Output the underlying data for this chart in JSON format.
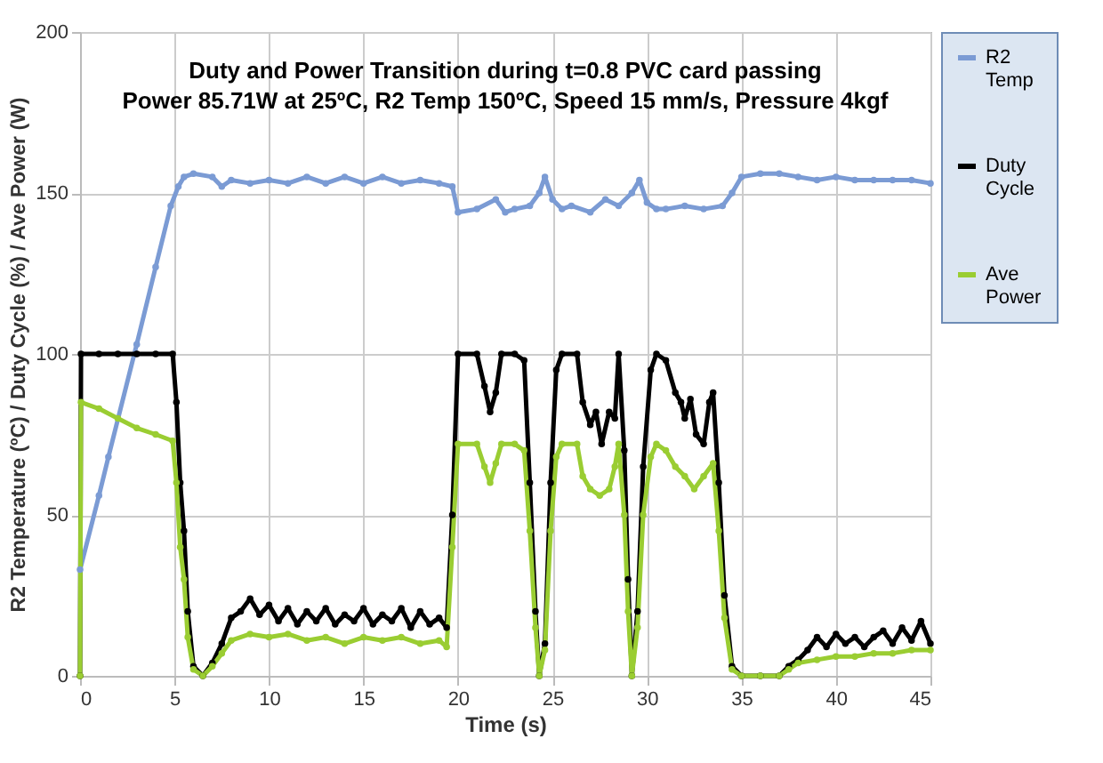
{
  "chart_data": {
    "type": "line",
    "title": "Duty and Power Transition during t=0.8 PVC card passing",
    "subtitle": "Power 85.71W at 25ºC, R2 Temp 150ºC, Speed 15 mm/s, Pressure 4kgf",
    "xlabel": "Time (s)",
    "ylabel": "R2 Temperature (ºC) / Duty Cycle (%) / Ave Power (W)",
    "xlim": [
      0,
      45
    ],
    "xticks": [
      0,
      5,
      10,
      15,
      20,
      25,
      30,
      35,
      40,
      45
    ],
    "ylim": [
      0,
      200
    ],
    "yticks": [
      0,
      50,
      100,
      150,
      200
    ],
    "grid": true,
    "legend": "right",
    "marker": "circle",
    "line_style": "solid",
    "series": [
      {
        "name": "R2 Temp",
        "color": "#7b9bd4",
        "x": [
          0,
          1,
          1.5,
          3,
          4,
          4.8,
          5.2,
          5.5,
          6,
          7,
          7.5,
          8,
          9,
          10,
          11,
          12,
          13,
          14,
          15,
          16,
          17,
          18,
          19,
          19.7,
          20,
          21,
          22,
          22.5,
          23,
          23.8,
          24.3,
          24.6,
          25,
          25.5,
          26,
          27,
          27.8,
          28.5,
          29.2,
          29.6,
          30,
          30.5,
          31,
          32,
          33,
          34,
          34.5,
          35,
          36,
          37,
          38,
          39,
          40,
          41,
          42,
          43,
          44,
          45
        ],
        "values": [
          33,
          56,
          68,
          103,
          127,
          146,
          152,
          155,
          156,
          155,
          152,
          154,
          153,
          154,
          153,
          155,
          153,
          155,
          153,
          155,
          153,
          154,
          153,
          152,
          144,
          145,
          148,
          144,
          145,
          146,
          150,
          155,
          148,
          145,
          146,
          144,
          148,
          146,
          150,
          154,
          147,
          145,
          145,
          146,
          145,
          146,
          150,
          155,
          156,
          156,
          155,
          154,
          155,
          154,
          154,
          154,
          154,
          153
        ]
      },
      {
        "name": "Duty Cycle",
        "color": "#000000",
        "x": [
          0,
          0.05,
          1,
          2,
          3,
          4,
          4.9,
          5.1,
          5.3,
          5.5,
          5.7,
          6,
          6.5,
          7,
          7.5,
          8,
          8.5,
          9,
          9.5,
          10,
          10.5,
          11,
          11.5,
          12,
          12.5,
          13,
          13.5,
          14,
          14.5,
          15,
          15.5,
          16,
          16.5,
          17,
          17.5,
          18,
          18.5,
          19,
          19.4,
          19.7,
          20,
          21,
          21.4,
          21.7,
          22,
          22.3,
          23,
          23.5,
          23.8,
          24.1,
          24.3,
          24.6,
          24.9,
          25.2,
          25.5,
          26.3,
          26.6,
          27,
          27.3,
          27.6,
          28,
          28.3,
          28.5,
          28.8,
          29,
          29.2,
          29.5,
          29.8,
          30.2,
          30.5,
          31,
          31.5,
          31.8,
          32,
          32.3,
          32.6,
          33,
          33.3,
          33.5,
          33.8,
          34.1,
          34.5,
          35,
          36,
          37,
          37.5,
          38,
          38.5,
          39,
          39.5,
          40,
          40.5,
          41,
          41.5,
          42,
          42.5,
          43,
          43.5,
          44,
          44.5,
          45
        ],
        "values": [
          0,
          100,
          100,
          100,
          100,
          100,
          100,
          85,
          60,
          45,
          20,
          3,
          0,
          4,
          10,
          18,
          20,
          24,
          19,
          22,
          17,
          21,
          16,
          20,
          17,
          21,
          16,
          19,
          17,
          21,
          16,
          19,
          17,
          21,
          15,
          20,
          16,
          18,
          15,
          50,
          100,
          100,
          90,
          82,
          88,
          100,
          100,
          98,
          60,
          20,
          0,
          10,
          60,
          95,
          100,
          100,
          85,
          78,
          82,
          72,
          82,
          80,
          100,
          70,
          30,
          0,
          20,
          65,
          95,
          100,
          98,
          88,
          85,
          80,
          86,
          75,
          72,
          85,
          88,
          60,
          25,
          3,
          0,
          0,
          0,
          3,
          5,
          8,
          12,
          9,
          13,
          10,
          12,
          9,
          12,
          14,
          10,
          15,
          11,
          17,
          10
        ]
      },
      {
        "name": "Ave Power",
        "color": "#9acd32",
        "x": [
          0,
          0.05,
          1,
          2,
          3,
          4,
          4.9,
          5.1,
          5.3,
          5.5,
          5.7,
          6,
          6.5,
          7,
          7.5,
          8,
          9,
          10,
          11,
          12,
          13,
          14,
          15,
          16,
          17,
          18,
          19,
          19.4,
          19.7,
          20,
          21,
          21.4,
          21.7,
          22,
          22.3,
          23,
          23.5,
          23.8,
          24.1,
          24.3,
          24.6,
          24.9,
          25.2,
          25.5,
          26.3,
          26.6,
          27,
          27.5,
          28,
          28.3,
          28.5,
          28.8,
          29,
          29.2,
          29.5,
          29.8,
          30.2,
          30.5,
          31,
          31.5,
          32,
          32.5,
          33,
          33.5,
          33.8,
          34.1,
          34.5,
          35,
          36,
          37,
          37.5,
          38,
          39,
          40,
          41,
          42,
          43,
          44,
          45
        ],
        "values": [
          0,
          85,
          83,
          80,
          77,
          75,
          73,
          60,
          40,
          30,
          12,
          2,
          0,
          3,
          7,
          11,
          13,
          12,
          13,
          11,
          12,
          10,
          12,
          11,
          12,
          10,
          11,
          9,
          40,
          72,
          72,
          65,
          60,
          66,
          72,
          72,
          70,
          45,
          15,
          0,
          8,
          45,
          68,
          72,
          72,
          62,
          58,
          56,
          58,
          65,
          72,
          50,
          20,
          0,
          15,
          50,
          68,
          72,
          70,
          65,
          62,
          58,
          62,
          66,
          45,
          18,
          2,
          0,
          0,
          0,
          2,
          4,
          5,
          6,
          6,
          7,
          7,
          8,
          8
        ]
      }
    ]
  }
}
